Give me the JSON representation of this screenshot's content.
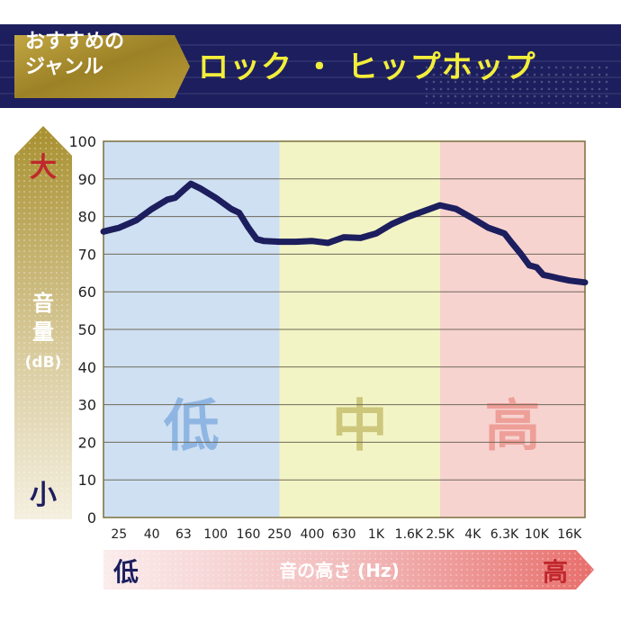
{
  "header": {
    "badge": "おすすめの\nジャンル",
    "badge_line1": "おすすめの",
    "badge_line2": "ジャンル",
    "title": "ロック・ヒップホップ",
    "title_display": "ロック ・ ヒップホップ"
  },
  "chart_data": {
    "type": "line",
    "ylabel_chars": [
      "音",
      "量"
    ],
    "ylabel_unit": "(dB)",
    "y_top_marker": "大",
    "y_bottom_marker": "小",
    "xlabel": "音の高さ (Hz)",
    "x_left_marker": "低",
    "x_right_marker": "高",
    "ylim": [
      0,
      100
    ],
    "yticks": [
      0,
      10,
      20,
      30,
      40,
      50,
      60,
      70,
      80,
      90,
      100
    ],
    "x_ticks": [
      "25",
      "40",
      "63",
      "100",
      "160",
      "250",
      "400",
      "630",
      "1K",
      "1.6K",
      "2.5K",
      "4K",
      "6.3K",
      "10K",
      "16K"
    ],
    "bands": [
      {
        "label": "低",
        "from": "20",
        "to": "250",
        "color": "#cfe0f3",
        "label_color": "#8fb6e3"
      },
      {
        "label": "中",
        "from": "250",
        "to": "2.5K",
        "color": "#f3f4c6",
        "label_color": "#cdc77c"
      },
      {
        "label": "高",
        "from": "2.5K",
        "to": "20K",
        "color": "#f7d3d0",
        "label_color": "#ee9f98"
      }
    ],
    "grid": true,
    "series": [
      {
        "color": "#1c1e5e",
        "points": [
          [
            "20",
            76
          ],
          [
            "25",
            77
          ],
          [
            "32",
            79
          ],
          [
            "40",
            82
          ],
          [
            "50",
            84.5
          ],
          [
            "56",
            85
          ],
          [
            "63",
            87
          ],
          [
            "70",
            88.7
          ],
          [
            "80",
            87.5
          ],
          [
            "100",
            85
          ],
          [
            "125",
            82
          ],
          [
            "140",
            81
          ],
          [
            "160",
            77
          ],
          [
            "180",
            74
          ],
          [
            "200",
            73.5
          ],
          [
            "250",
            73.3
          ],
          [
            "315",
            73.3
          ],
          [
            "400",
            73.5
          ],
          [
            "500",
            73
          ],
          [
            "630",
            74.5
          ],
          [
            "800",
            74.3
          ],
          [
            "1K",
            75.5
          ],
          [
            "1.25K",
            78
          ],
          [
            "1.6K",
            80
          ],
          [
            "2K",
            81.5
          ],
          [
            "2.5K",
            83
          ],
          [
            "3.15K",
            82
          ],
          [
            "4K",
            79.5
          ],
          [
            "5K",
            77
          ],
          [
            "6.3K",
            75.5
          ],
          [
            "7K",
            73
          ],
          [
            "8K",
            70
          ],
          [
            "9K",
            67
          ],
          [
            "10K",
            66.5
          ],
          [
            "11K",
            64.5
          ],
          [
            "12.5K",
            64
          ],
          [
            "14K",
            63.5
          ],
          [
            "16K",
            63
          ],
          [
            "20K",
            62.5
          ]
        ]
      }
    ]
  },
  "colors": {
    "navy": "#1c1e5e",
    "gold": "#a38c2b",
    "red": "#c1272d",
    "title_yellow": "#f3ee3a"
  }
}
